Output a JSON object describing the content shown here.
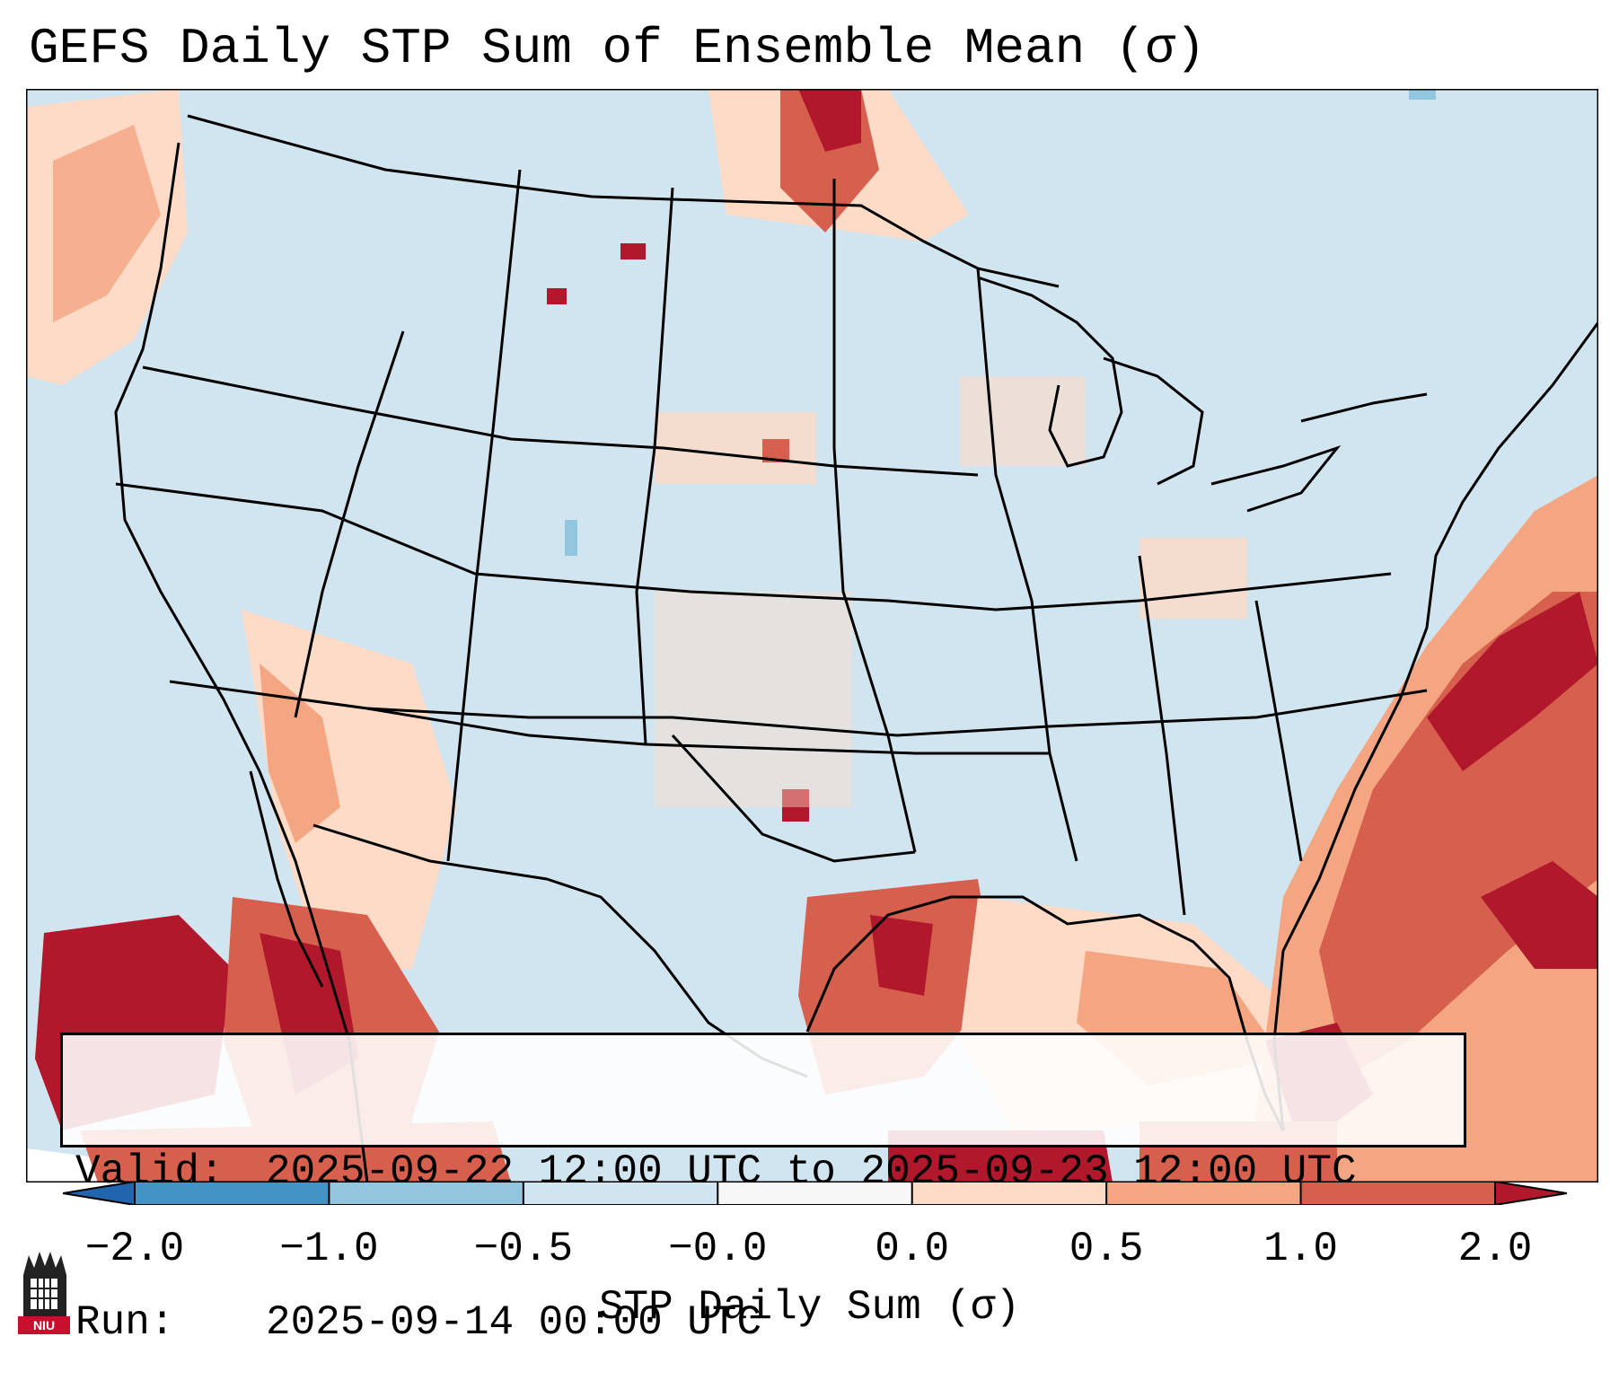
{
  "header": {
    "title": "GEFS Daily STP Sum of Ensemble Mean (σ)"
  },
  "info": {
    "valid_label": "Valid:",
    "valid_value": "2025-09-22 12:00 UTC to 2025-09-23 12:00 UTC",
    "run_label": "Run:",
    "run_value": "2025-09-14 00:00 UTC"
  },
  "colorbar": {
    "label": "STP Daily Sum (σ)",
    "ticks": [
      "−2.0",
      "−1.0",
      "−0.5",
      "−0.0",
      "0.0",
      "0.5",
      "1.0",
      "2.0"
    ],
    "colors": [
      "#2166ac",
      "#4393c3",
      "#92c5de",
      "#d1e5f0",
      "#f7f7f7",
      "#fddbc7",
      "#f4a582",
      "#d6604d",
      "#b2182b"
    ]
  },
  "map": {
    "background_color": "#d1e5f0",
    "outside_color": "#ffffff"
  },
  "logo": {
    "text": "NIU",
    "color": "#c8102e"
  }
}
